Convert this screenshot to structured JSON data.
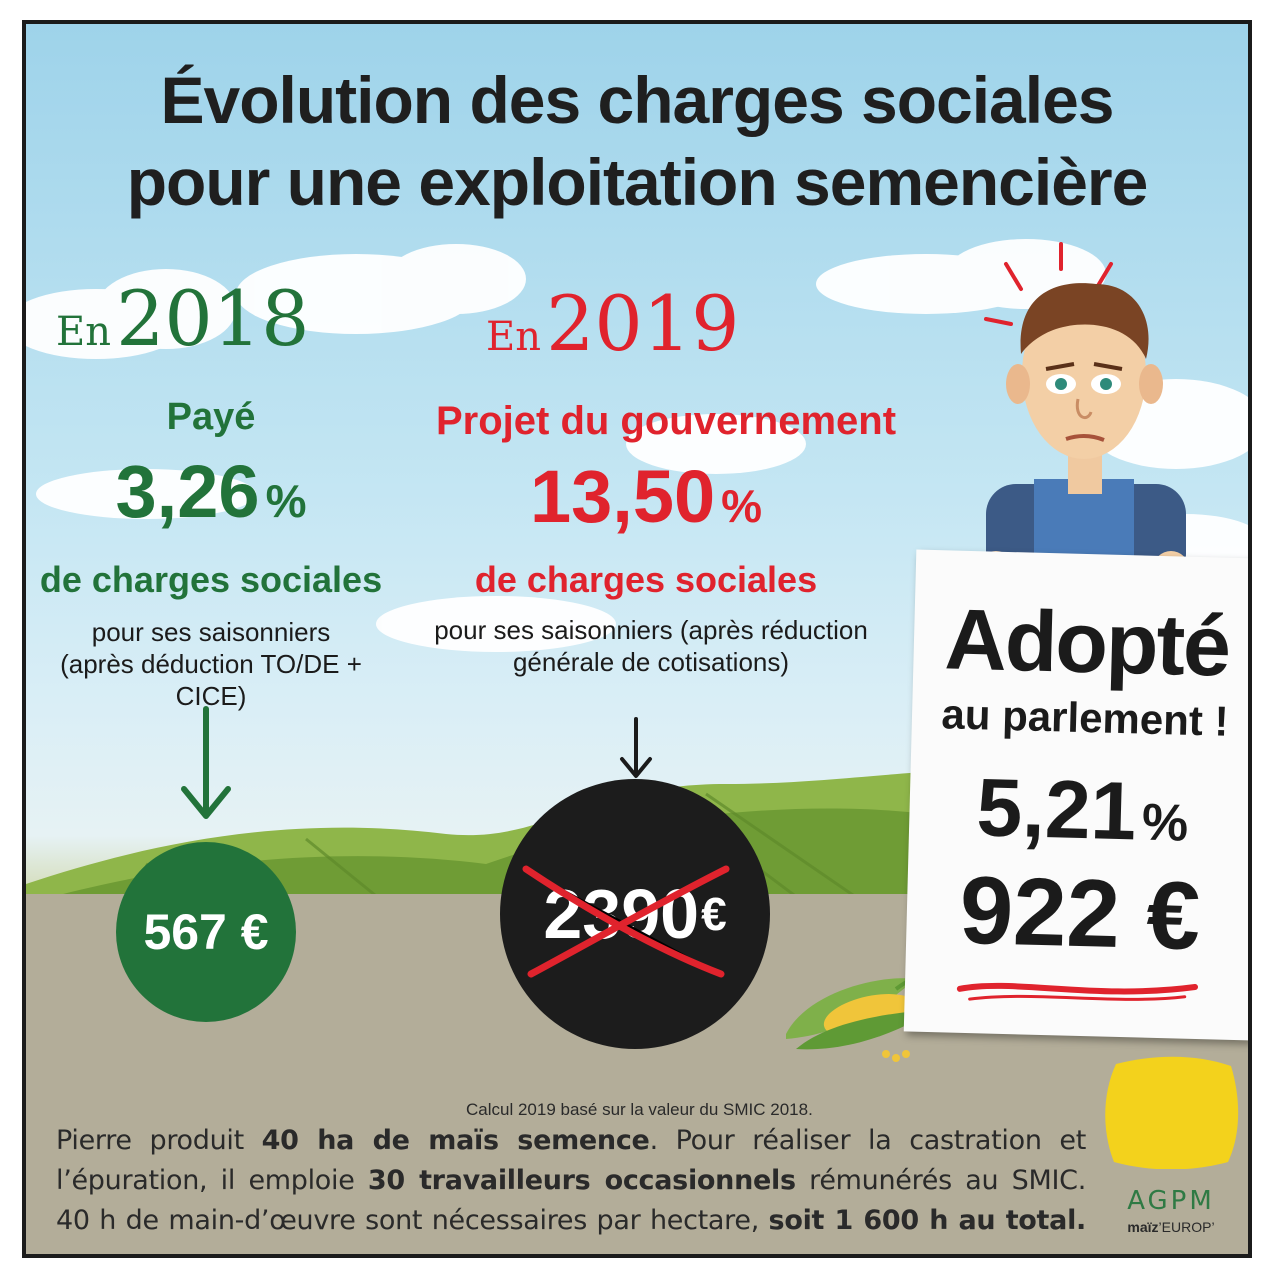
{
  "title": {
    "line1": "Évolution des charges sociales",
    "line2": "pour une exploitation semencière"
  },
  "col2018": {
    "en": "En",
    "year": "2018",
    "status": "Payé",
    "percent": "3,26",
    "percent_sign": "%",
    "subtitle": "de charges sociales",
    "detail_line1": "pour ses saisonniers",
    "detail_line2": "(après déduction TO/DE + CICE)",
    "amount": "567 €",
    "color": "#22733a"
  },
  "col2019": {
    "en": "En",
    "year": "2019",
    "status": "Projet du gouvernement",
    "percent": "13,50",
    "percent_sign": "%",
    "subtitle": "de charges sociales",
    "detail_line1": "pour ses saisonniers (après réduction",
    "detail_line2": "générale de cotisations)",
    "amount": "2390",
    "amount_currency": "€",
    "color": "#e0232d"
  },
  "sign": {
    "headline": "Adopté",
    "subline": "au parlement !",
    "percent": "5,21",
    "percent_sign": "%",
    "amount": "922 €"
  },
  "footnote": "Calcul 2019 basé sur la valeur du SMIC 2018.",
  "body": {
    "p1": "Pierre produit ",
    "b1": "40 ha de maïs semence",
    "p2": ". Pour réaliser la castration et l’épuration, il emploie ",
    "b2": "30 travailleurs occasionnels",
    "p3": " rémunérés au SMIC. 40 h de main-d’œuvre sont nécessaires par hectare, ",
    "b3": "soit 1 600 h au total."
  },
  "logo": {
    "name": "AGPM",
    "sub_bold": "maïz",
    "sub_rest": "’EUROP’",
    "color": "#f3d21c"
  }
}
